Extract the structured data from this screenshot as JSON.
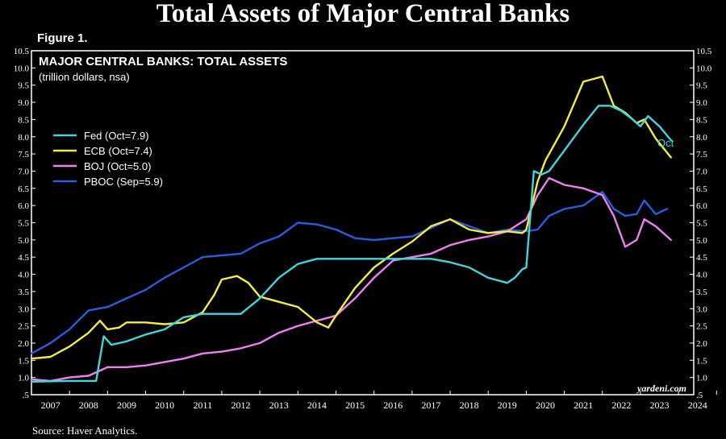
{
  "header": {
    "title": "Total Assets of Major Central Banks",
    "figure_label": "Figure 1."
  },
  "footer": {
    "source": "Source: Haver Analytics."
  },
  "colors": {
    "background": "#000000",
    "fed": "#3fd6dc",
    "ecb": "#f2ee3c",
    "boj": "#f07ff0",
    "pboc": "#2b5ce0"
  },
  "chart_data": {
    "type": "line",
    "title": "MAJOR CENTRAL BANKS: TOTAL ASSETS",
    "subtitle": "(trillion dollars, nsa)",
    "xlabel": "",
    "ylabel": "",
    "xlim": [
      2007,
      2024.4
    ],
    "ylim": [
      0.5,
      10.5
    ],
    "x_ticks": [
      "2007",
      "2008",
      "2009",
      "2010",
      "2011",
      "2012",
      "2013",
      "2014",
      "2015",
      "2016",
      "2017",
      "2018",
      "2019",
      "2020",
      "2021",
      "2022",
      "2023",
      "2024"
    ],
    "y_ticks": [
      ".5",
      "1.0",
      "1.5",
      "2.0",
      "2.5",
      "3.0",
      "3.5",
      "4.0",
      "4.5",
      "5.0",
      "5.5",
      "6.0",
      "6.5",
      "7.0",
      "7.5",
      "8.0",
      "8.5",
      "9.0",
      "9.5",
      "10.0",
      "10.5"
    ],
    "legend_position": "upper-left",
    "end_annotation": "Oct",
    "watermark": "yardeni.com",
    "series": [
      {
        "name": "Fed (Oct=7.9)",
        "color": "#3fd6dc",
        "x": [
          2007,
          2008,
          2008.7,
          2008.9,
          2009.1,
          2009.5,
          2010,
          2010.5,
          2011,
          2011.5,
          2012,
          2012.5,
          2013,
          2013.5,
          2014,
          2014.5,
          2015,
          2016,
          2017,
          2017.5,
          2018,
          2018.5,
          2019,
          2019.5,
          2019.7,
          2019.9,
          2020,
          2020.2,
          2020.4,
          2020.6,
          2021,
          2021.5,
          2021.9,
          2022.2,
          2022.5,
          2022.8,
          2023,
          2023.2,
          2023.5,
          2023.8
        ],
        "values": [
          0.88,
          0.9,
          0.9,
          2.2,
          1.95,
          2.05,
          2.25,
          2.4,
          2.75,
          2.85,
          2.85,
          2.85,
          3.3,
          3.9,
          4.3,
          4.45,
          4.45,
          4.45,
          4.45,
          4.45,
          4.35,
          4.2,
          3.9,
          3.75,
          3.9,
          4.15,
          4.2,
          7.0,
          6.9,
          7.0,
          7.6,
          8.35,
          8.9,
          8.9,
          8.75,
          8.5,
          8.3,
          8.6,
          8.3,
          7.9
        ]
      },
      {
        "name": "ECB (Oct=7.4)",
        "color": "#f2ee3c",
        "x": [
          2007,
          2007.5,
          2008,
          2008.5,
          2008.8,
          2009,
          2009.3,
          2009.5,
          2010,
          2010.5,
          2011,
          2011.5,
          2011.8,
          2012,
          2012.4,
          2012.7,
          2013,
          2013.5,
          2014,
          2014.5,
          2014.8,
          2015,
          2015.5,
          2016,
          2016.5,
          2017,
          2017.5,
          2018,
          2018.5,
          2019,
          2019.5,
          2019.9,
          2020,
          2020.3,
          2020.5,
          2021,
          2021.5,
          2022,
          2022.3,
          2022.6,
          2022.9,
          2023.1,
          2023.4,
          2023.8
        ],
        "values": [
          1.55,
          1.6,
          1.9,
          2.3,
          2.65,
          2.4,
          2.45,
          2.6,
          2.6,
          2.55,
          2.6,
          2.9,
          3.4,
          3.85,
          3.95,
          3.75,
          3.35,
          3.2,
          3.05,
          2.6,
          2.45,
          2.8,
          3.6,
          4.2,
          4.6,
          4.95,
          5.4,
          5.6,
          5.3,
          5.2,
          5.25,
          5.2,
          5.3,
          6.7,
          7.3,
          8.3,
          9.6,
          9.75,
          8.9,
          8.7,
          8.4,
          8.5,
          7.95,
          7.4
        ]
      },
      {
        "name": "BOJ (Oct=5.0)",
        "color": "#f07ff0",
        "x": [
          2007,
          2007.5,
          2008,
          2008.5,
          2009,
          2009.5,
          2010,
          2010.5,
          2011,
          2011.5,
          2012,
          2012.5,
          2013,
          2013.5,
          2014,
          2014.5,
          2015,
          2015.5,
          2016,
          2016.5,
          2017,
          2017.5,
          2018,
          2018.5,
          2019,
          2019.5,
          2020,
          2020.3,
          2020.6,
          2021,
          2021.5,
          2022,
          2022.3,
          2022.6,
          2022.9,
          2023.1,
          2023.4,
          2023.8
        ],
        "values": [
          0.95,
          0.9,
          1.0,
          1.05,
          1.3,
          1.3,
          1.35,
          1.45,
          1.55,
          1.7,
          1.75,
          1.85,
          2.0,
          2.3,
          2.5,
          2.65,
          2.8,
          3.3,
          3.9,
          4.4,
          4.5,
          4.6,
          4.85,
          5.0,
          5.1,
          5.25,
          5.6,
          6.3,
          6.8,
          6.6,
          6.5,
          6.3,
          5.7,
          4.8,
          5.0,
          5.6,
          5.4,
          5.0
        ]
      },
      {
        "name": "PBOC (Sep=5.9)",
        "color": "#2b5ce0",
        "x": [
          2007,
          2007.5,
          2008,
          2008.5,
          2009,
          2009.5,
          2010,
          2010.5,
          2011,
          2011.5,
          2012,
          2012.5,
          2013,
          2013.5,
          2014,
          2014.5,
          2015,
          2015.5,
          2016,
          2016.5,
          2017,
          2017.5,
          2018,
          2018.5,
          2019,
          2019.5,
          2020,
          2020.3,
          2020.6,
          2021,
          2021.5,
          2022,
          2022.3,
          2022.6,
          2022.9,
          2023.1,
          2023.4,
          2023.7
        ],
        "values": [
          1.7,
          2.0,
          2.4,
          2.95,
          3.05,
          3.3,
          3.55,
          3.9,
          4.2,
          4.5,
          4.55,
          4.6,
          4.9,
          5.1,
          5.5,
          5.45,
          5.3,
          5.05,
          5.0,
          5.05,
          5.1,
          5.35,
          5.6,
          5.4,
          5.2,
          5.3,
          5.25,
          5.3,
          5.7,
          5.9,
          6.0,
          6.4,
          5.9,
          5.7,
          5.75,
          6.15,
          5.75,
          5.9
        ]
      }
    ]
  }
}
